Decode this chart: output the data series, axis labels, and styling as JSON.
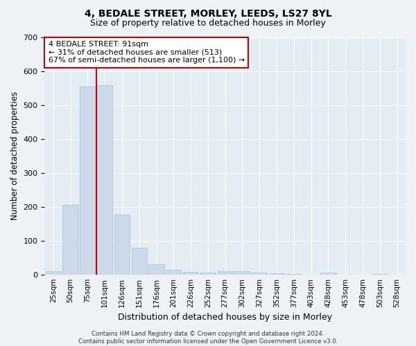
{
  "title1": "4, BEDALE STREET, MORLEY, LEEDS, LS27 8YL",
  "title2": "Size of property relative to detached houses in Morley",
  "xlabel": "Distribution of detached houses by size in Morley",
  "ylabel": "Number of detached properties",
  "bar_labels": [
    "25sqm",
    "50sqm",
    "75sqm",
    "101sqm",
    "126sqm",
    "151sqm",
    "176sqm",
    "201sqm",
    "226sqm",
    "252sqm",
    "277sqm",
    "302sqm",
    "327sqm",
    "352sqm",
    "377sqm",
    "403sqm",
    "428sqm",
    "453sqm",
    "478sqm",
    "503sqm",
    "528sqm"
  ],
  "bar_values": [
    10,
    205,
    555,
    560,
    178,
    80,
    30,
    13,
    8,
    5,
    10,
    10,
    5,
    3,
    1,
    0,
    5,
    0,
    0,
    1,
    0
  ],
  "bar_color": "#ccd9e8",
  "bar_edge_color": "#aabdd4",
  "vline_color": "#cc0000",
  "annotation_line1": "4 BEDALE STREET: 91sqm",
  "annotation_line2": "← 31% of detached houses are smaller (513)",
  "annotation_line3": "67% of semi-detached houses are larger (1,100) →",
  "annotation_box_color": "#ffffff",
  "annotation_box_edge": "#cc0000",
  "ylim": [
    0,
    700
  ],
  "yticks": [
    0,
    100,
    200,
    300,
    400,
    500,
    600,
    700
  ],
  "footer1": "Contains HM Land Registry data © Crown copyright and database right 2024.",
  "footer2": "Contains public sector information licensed under the Open Government Licence v3.0.",
  "bg_color": "#eef2f7",
  "plot_bg_color": "#e4ecf4"
}
